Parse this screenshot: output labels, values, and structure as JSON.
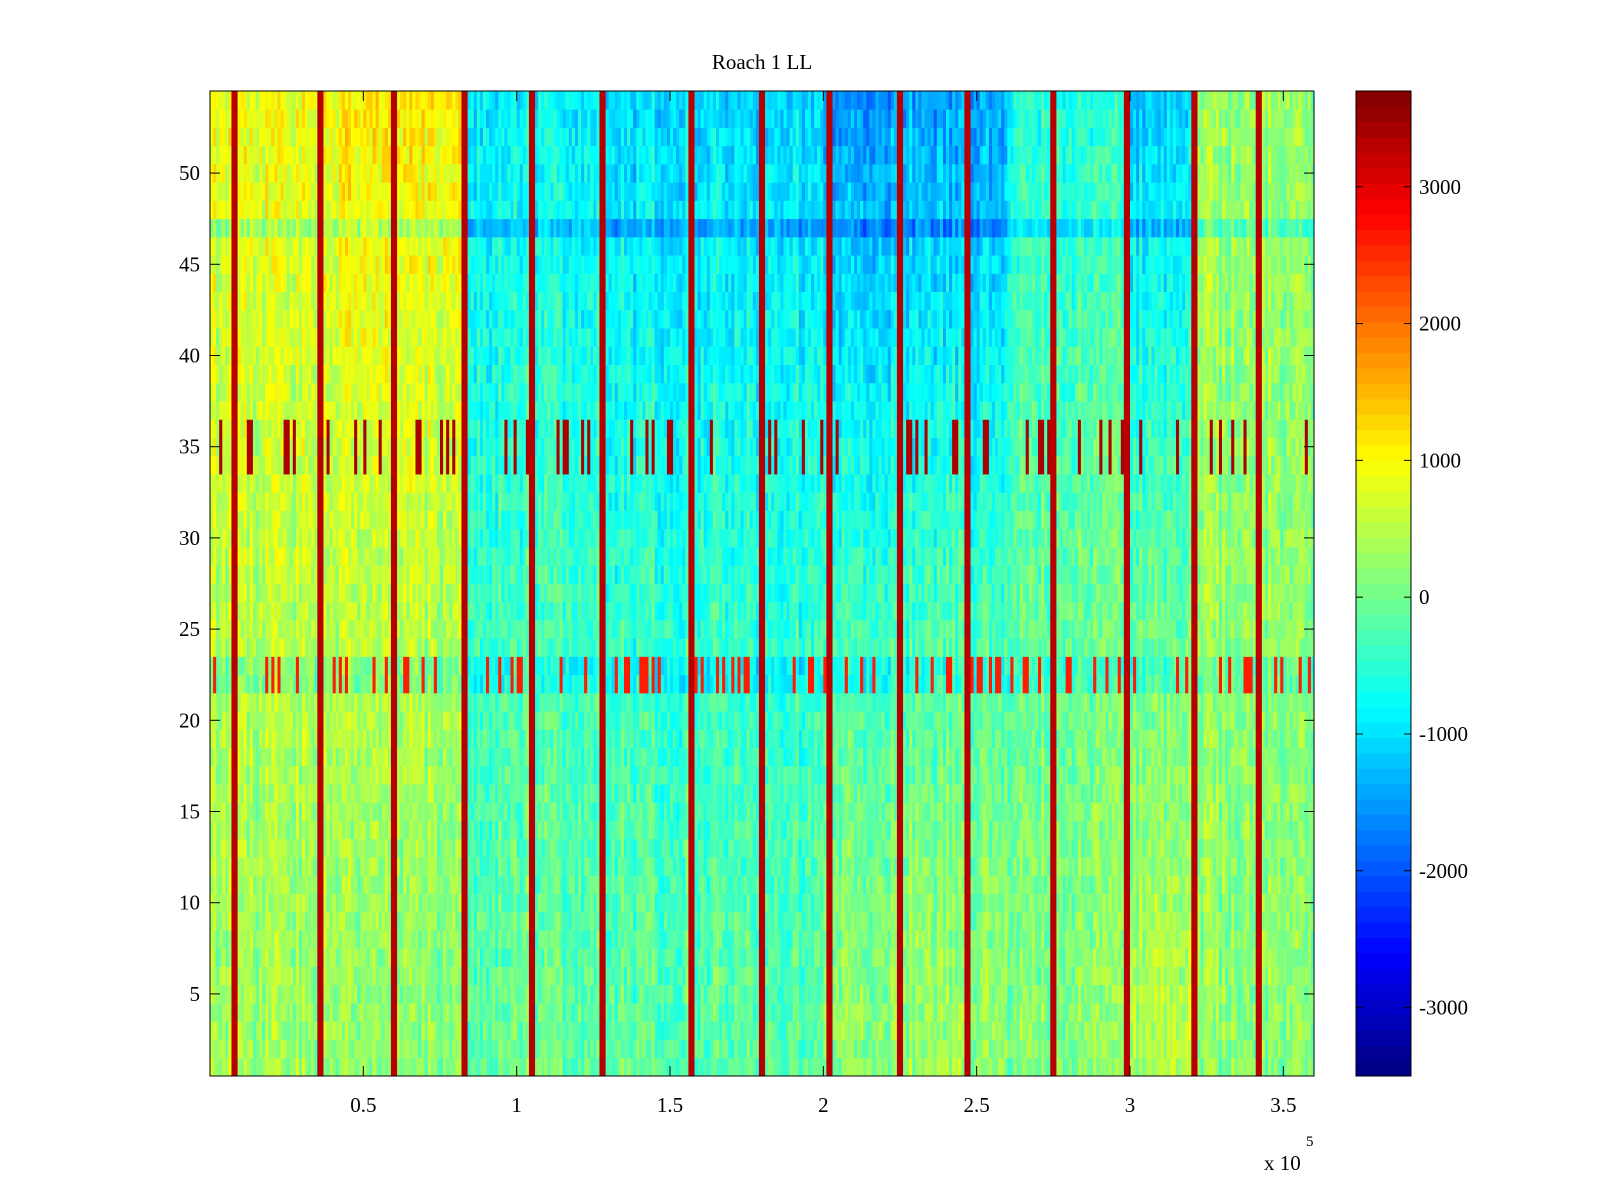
{
  "chart_data": {
    "type": "heatmap",
    "title": "Roach 1 LL",
    "xlabel": "",
    "ylabel": "",
    "x_multiplier": {
      "base": "x 10",
      "exponent": "5"
    },
    "xlim": [
      0,
      3.6
    ],
    "ylim": [
      0.5,
      54.5
    ],
    "x_ticks": [
      0.5,
      1,
      1.5,
      2,
      2.5,
      3,
      3.5
    ],
    "x_tick_labels": [
      "0.5",
      "1",
      "1.5",
      "2",
      "2.5",
      "3",
      "3.5"
    ],
    "y_ticks": [
      5,
      10,
      15,
      20,
      25,
      30,
      35,
      40,
      45,
      50
    ],
    "y_tick_labels": [
      "5",
      "10",
      "15",
      "20",
      "25",
      "30",
      "35",
      "40",
      "45",
      "50"
    ],
    "rows": 54,
    "colormap": "jet",
    "color_limits": [
      -3500,
      3700
    ],
    "colorbar_ticks": [
      3000,
      2000,
      1000,
      0,
      -1000,
      -2000,
      -3000
    ],
    "colorbar_tick_labels": [
      "3000",
      "2000",
      "1000",
      "0",
      "-1000",
      "-2000",
      "-3000"
    ],
    "time_segments": [
      {
        "x_start": 0.0,
        "x_end": 0.42,
        "level_low_rows": 300,
        "level_high_rows": 900
      },
      {
        "x_start": 0.42,
        "x_end": 0.83,
        "level_low_rows": 150,
        "level_high_rows": 1100
      },
      {
        "x_start": 0.83,
        "x_end": 1.3,
        "level_low_rows": -80,
        "level_high_rows": -850
      },
      {
        "x_start": 1.3,
        "x_end": 2.0,
        "level_low_rows": -150,
        "level_high_rows": -1050
      },
      {
        "x_start": 2.0,
        "x_end": 2.6,
        "level_low_rows": 300,
        "level_high_rows": -1450
      },
      {
        "x_start": 2.6,
        "x_end": 3.0,
        "level_low_rows": 150,
        "level_high_rows": -550
      },
      {
        "x_start": 3.0,
        "x_end": 3.22,
        "level_low_rows": 500,
        "level_high_rows": -1150
      },
      {
        "x_start": 3.22,
        "x_end": 3.61,
        "level_low_rows": 200,
        "level_high_rows": 300
      }
    ],
    "spike_columns_x": [
      0.08,
      0.36,
      0.6,
      0.83,
      1.05,
      1.28,
      1.57,
      1.8,
      2.02,
      2.25,
      2.47,
      2.75,
      2.99,
      3.21,
      3.42
    ],
    "spike_value": 3300,
    "high_rows": [
      34,
      35,
      36
    ],
    "low_rows": [
      22,
      23
    ],
    "blue_band_rows": [
      47
    ]
  }
}
